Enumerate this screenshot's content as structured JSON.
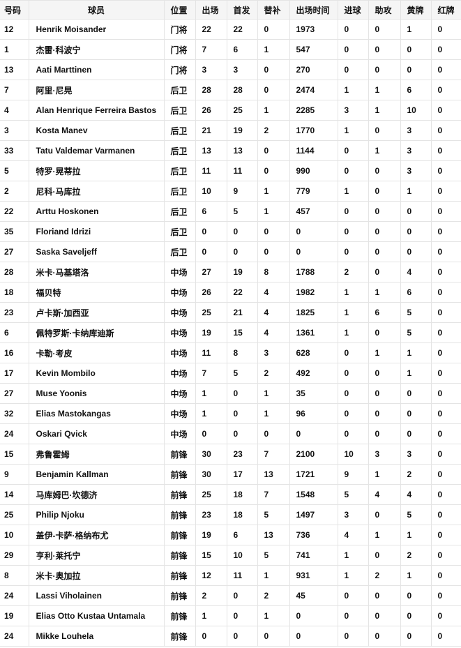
{
  "table": {
    "headers": [
      "号码",
      "球员",
      "位置",
      "出场",
      "首发",
      "替补",
      "出场时间",
      "进球",
      "助攻",
      "黄牌",
      "红牌"
    ],
    "rows": [
      [
        "12",
        "Henrik Moisander",
        "门将",
        "22",
        "22",
        "0",
        "1973",
        "0",
        "0",
        "1",
        "0"
      ],
      [
        "1",
        "杰雷·科波宁",
        "门将",
        "7",
        "6",
        "1",
        "547",
        "0",
        "0",
        "0",
        "0"
      ],
      [
        "13",
        "Aati Marttinen",
        "门将",
        "3",
        "3",
        "0",
        "270",
        "0",
        "0",
        "0",
        "0"
      ],
      [
        "7",
        "阿里·尼晃",
        "后卫",
        "28",
        "28",
        "0",
        "2474",
        "1",
        "1",
        "6",
        "0"
      ],
      [
        "4",
        "Alan Henrique Ferreira Bastos",
        "后卫",
        "26",
        "25",
        "1",
        "2285",
        "3",
        "1",
        "10",
        "0"
      ],
      [
        "3",
        "Kosta Manev",
        "后卫",
        "21",
        "19",
        "2",
        "1770",
        "1",
        "0",
        "3",
        "0"
      ],
      [
        "33",
        "Tatu Valdemar Varmanen",
        "后卫",
        "13",
        "13",
        "0",
        "1144",
        "0",
        "1",
        "3",
        "0"
      ],
      [
        "5",
        "特罗·晃蒂拉",
        "后卫",
        "11",
        "11",
        "0",
        "990",
        "0",
        "0",
        "3",
        "0"
      ],
      [
        "2",
        "尼科·马库拉",
        "后卫",
        "10",
        "9",
        "1",
        "779",
        "1",
        "0",
        "1",
        "0"
      ],
      [
        "22",
        "Arttu Hoskonen",
        "后卫",
        "6",
        "5",
        "1",
        "457",
        "0",
        "0",
        "0",
        "0"
      ],
      [
        "35",
        "Floriand Idrizi",
        "后卫",
        "0",
        "0",
        "0",
        "0",
        "0",
        "0",
        "0",
        "0"
      ],
      [
        "27",
        "Saska Saveljeff",
        "后卫",
        "0",
        "0",
        "0",
        "0",
        "0",
        "0",
        "0",
        "0"
      ],
      [
        "28",
        "米卡·马基塔洛",
        "中场",
        "27",
        "19",
        "8",
        "1788",
        "2",
        "0",
        "4",
        "0"
      ],
      [
        "18",
        "福贝特",
        "中场",
        "26",
        "22",
        "4",
        "1982",
        "1",
        "1",
        "6",
        "0"
      ],
      [
        "23",
        "卢卡斯·加西亚",
        "中场",
        "25",
        "21",
        "4",
        "1825",
        "1",
        "6",
        "5",
        "0"
      ],
      [
        "6",
        "佩特罗斯·卡纳库迪斯",
        "中场",
        "19",
        "15",
        "4",
        "1361",
        "1",
        "0",
        "5",
        "0"
      ],
      [
        "16",
        "卡勒·考皮",
        "中场",
        "11",
        "8",
        "3",
        "628",
        "0",
        "1",
        "1",
        "0"
      ],
      [
        "17",
        "Kevin Mombilo",
        "中场",
        "7",
        "5",
        "2",
        "492",
        "0",
        "0",
        "1",
        "0"
      ],
      [
        "27",
        "Muse Yoonis",
        "中场",
        "1",
        "0",
        "1",
        "35",
        "0",
        "0",
        "0",
        "0"
      ],
      [
        "32",
        "Elias Mastokangas",
        "中场",
        "1",
        "0",
        "1",
        "96",
        "0",
        "0",
        "0",
        "0"
      ],
      [
        "24",
        "Oskari Qvick",
        "中场",
        "0",
        "0",
        "0",
        "0",
        "0",
        "0",
        "0",
        "0"
      ],
      [
        "15",
        "弗鲁霍姆",
        "前锋",
        "30",
        "23",
        "7",
        "2100",
        "10",
        "3",
        "3",
        "0"
      ],
      [
        "9",
        "Benjamin Kallman",
        "前锋",
        "30",
        "17",
        "13",
        "1721",
        "9",
        "1",
        "2",
        "0"
      ],
      [
        "14",
        "马库姆巴·坎德济",
        "前锋",
        "25",
        "18",
        "7",
        "1548",
        "5",
        "4",
        "4",
        "0"
      ],
      [
        "25",
        "Philip Njoku",
        "前锋",
        "23",
        "18",
        "5",
        "1497",
        "3",
        "0",
        "5",
        "0"
      ],
      [
        "10",
        "盖伊-卡萨·格纳布尤",
        "前锋",
        "19",
        "6",
        "13",
        "736",
        "4",
        "1",
        "1",
        "0"
      ],
      [
        "29",
        "亨利·莱托宁",
        "前锋",
        "15",
        "10",
        "5",
        "741",
        "1",
        "0",
        "2",
        "0"
      ],
      [
        "8",
        "米卡·奥加拉",
        "前锋",
        "12",
        "11",
        "1",
        "931",
        "1",
        "2",
        "1",
        "0"
      ],
      [
        "24",
        "Lassi Viholainen",
        "前锋",
        "2",
        "0",
        "2",
        "45",
        "0",
        "0",
        "0",
        "0"
      ],
      [
        "19",
        "Elias Otto Kustaa Untamala",
        "前锋",
        "1",
        "0",
        "1",
        "0",
        "0",
        "0",
        "0",
        "0"
      ],
      [
        "24",
        "Mikke Louhela",
        "前锋",
        "0",
        "0",
        "0",
        "0",
        "0",
        "0",
        "0",
        "0"
      ]
    ]
  }
}
